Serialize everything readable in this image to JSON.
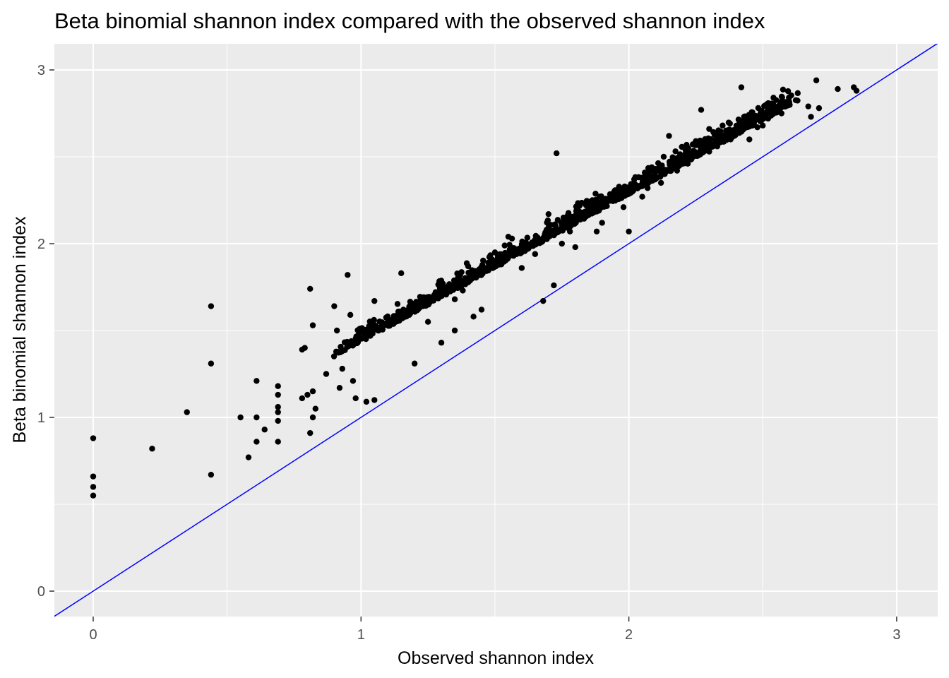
{
  "chart_data": {
    "type": "scatter",
    "title": "Beta binomial shannon index compared with the observed shannon index",
    "xlabel": "Observed shannon index",
    "ylabel": "Beta binomial shannon index",
    "xlim": [
      -0.15,
      3.15
    ],
    "ylim": [
      -0.15,
      3.15
    ],
    "x_ticks": [
      0,
      1,
      2,
      3
    ],
    "y_ticks": [
      0,
      1,
      2,
      3
    ],
    "x_tick_labels": [
      "0",
      "1",
      "2",
      "3"
    ],
    "y_tick_labels": [
      "0",
      "1",
      "2",
      "3"
    ],
    "grid": true,
    "legend": "none",
    "reference_line": {
      "kind": "identity",
      "intercept": 0,
      "slope": 1,
      "color": "#0000FF"
    },
    "point_color": "#000000",
    "panel_color": "#EBEBEB",
    "series": [
      {
        "points": [
          [
            0.0,
            0.88
          ],
          [
            0.0,
            0.66
          ],
          [
            0.0,
            0.6
          ],
          [
            0.0,
            0.55
          ],
          [
            0.22,
            0.82
          ],
          [
            0.35,
            1.03
          ],
          [
            0.44,
            1.64
          ],
          [
            0.44,
            1.31
          ],
          [
            0.44,
            0.67
          ],
          [
            0.55,
            1.0
          ],
          [
            0.58,
            0.77
          ],
          [
            0.61,
            1.21
          ],
          [
            0.61,
            1.0
          ],
          [
            0.61,
            0.86
          ],
          [
            0.64,
            0.93
          ],
          [
            0.69,
            1.18
          ],
          [
            0.69,
            1.13
          ],
          [
            0.69,
            1.06
          ],
          [
            0.69,
            1.03
          ],
          [
            0.69,
            0.98
          ],
          [
            0.69,
            0.86
          ],
          [
            0.78,
            1.39
          ],
          [
            0.79,
            1.4
          ],
          [
            0.78,
            1.11
          ],
          [
            0.8,
            1.13
          ],
          [
            0.81,
            1.74
          ],
          [
            0.82,
            1.53
          ],
          [
            0.81,
            0.91
          ],
          [
            0.82,
            1.0
          ],
          [
            0.83,
            1.05
          ],
          [
            0.82,
            1.15
          ],
          [
            0.87,
            1.25
          ],
          [
            0.9,
            1.64
          ],
          [
            0.91,
            1.5
          ],
          [
            0.92,
            1.17
          ],
          [
            0.93,
            1.28
          ],
          [
            0.95,
            1.82
          ],
          [
            0.96,
            1.59
          ],
          [
            0.97,
            1.21
          ],
          [
            0.98,
            1.11
          ],
          [
            1.02,
            1.09
          ],
          [
            1.05,
            1.1
          ],
          [
            1.05,
            1.67
          ],
          [
            1.1,
            1.55
          ],
          [
            1.15,
            1.83
          ],
          [
            1.18,
            1.59
          ],
          [
            1.2,
            1.31
          ],
          [
            1.25,
            1.55
          ],
          [
            1.3,
            1.43
          ],
          [
            1.35,
            1.5
          ],
          [
            1.35,
            1.68
          ],
          [
            1.38,
            1.73
          ],
          [
            1.4,
            1.87
          ],
          [
            1.42,
            1.58
          ],
          [
            1.45,
            1.62
          ],
          [
            1.5,
            1.95
          ],
          [
            1.55,
            2.04
          ],
          [
            1.6,
            1.86
          ],
          [
            1.65,
            1.94
          ],
          [
            1.68,
            1.67
          ],
          [
            1.72,
            1.76
          ],
          [
            1.73,
            2.52
          ],
          [
            1.7,
            2.17
          ],
          [
            1.75,
            2.0
          ],
          [
            1.78,
            2.07
          ],
          [
            1.8,
            1.98
          ],
          [
            1.85,
            2.22
          ],
          [
            1.88,
            2.07
          ],
          [
            1.9,
            2.12
          ],
          [
            1.95,
            2.28
          ],
          [
            1.98,
            2.21
          ],
          [
            2.0,
            2.07
          ],
          [
            2.02,
            2.37
          ],
          [
            2.05,
            2.27
          ],
          [
            2.07,
            2.32
          ],
          [
            2.1,
            2.43
          ],
          [
            2.12,
            2.35
          ],
          [
            2.15,
            2.62
          ],
          [
            2.18,
            2.42
          ],
          [
            2.2,
            2.5
          ],
          [
            2.22,
            2.46
          ],
          [
            2.25,
            2.59
          ],
          [
            2.27,
            2.77
          ],
          [
            2.3,
            2.53
          ],
          [
            2.3,
            2.66
          ],
          [
            2.33,
            2.56
          ],
          [
            2.35,
            2.68
          ],
          [
            2.38,
            2.6
          ],
          [
            2.4,
            2.63
          ],
          [
            2.42,
            2.9
          ],
          [
            2.43,
            2.73
          ],
          [
            2.45,
            2.6
          ],
          [
            2.48,
            2.67
          ],
          [
            2.5,
            2.68
          ],
          [
            2.52,
            2.72
          ],
          [
            2.54,
            2.84
          ],
          [
            2.57,
            2.75
          ],
          [
            2.67,
            2.79
          ],
          [
            2.68,
            2.73
          ],
          [
            2.7,
            2.94
          ],
          [
            2.71,
            2.78
          ],
          [
            2.78,
            2.89
          ],
          [
            2.84,
            2.9
          ],
          [
            2.85,
            2.88
          ]
        ]
      }
    ]
  }
}
